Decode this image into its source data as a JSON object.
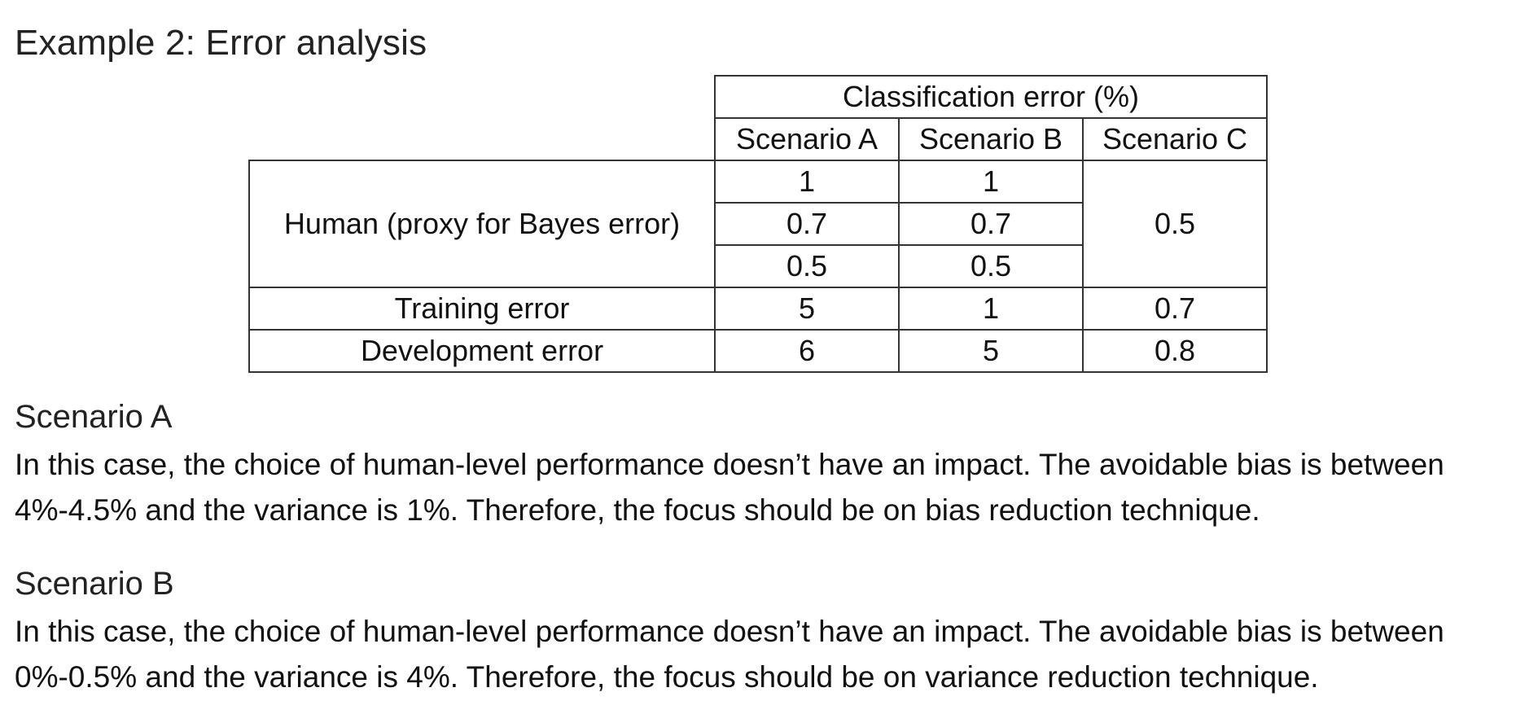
{
  "title": "Example 2: Error analysis",
  "table": {
    "group_header": "Classification error (%)",
    "columns": [
      "Scenario A",
      "Scenario B",
      "Scenario C"
    ],
    "human": {
      "label": "Human (proxy for Bayes error)",
      "scenario_a": [
        "1",
        "0.7",
        "0.5"
      ],
      "scenario_b": [
        "1",
        "0.7",
        "0.5"
      ],
      "scenario_c": "0.5"
    },
    "training": {
      "label": "Training error",
      "values": [
        "5",
        "1",
        "0.7"
      ]
    },
    "development": {
      "label": "Development error",
      "values": [
        "6",
        "5",
        "0.8"
      ]
    }
  },
  "sections": [
    {
      "heading": "Scenario A",
      "line1": "In this case, the choice of human-level performance doesn’t have an impact. The avoidable bias is between",
      "line2": "4%-4.5% and the variance is 1%. Therefore, the focus should be on bias reduction technique."
    },
    {
      "heading": "Scenario B",
      "line1": "In this case, the choice of human-level performance doesn’t have an impact. The avoidable bias is between",
      "line2": "0%-0.5% and the variance is 4%. Therefore, the focus should be on variance reduction technique."
    }
  ]
}
